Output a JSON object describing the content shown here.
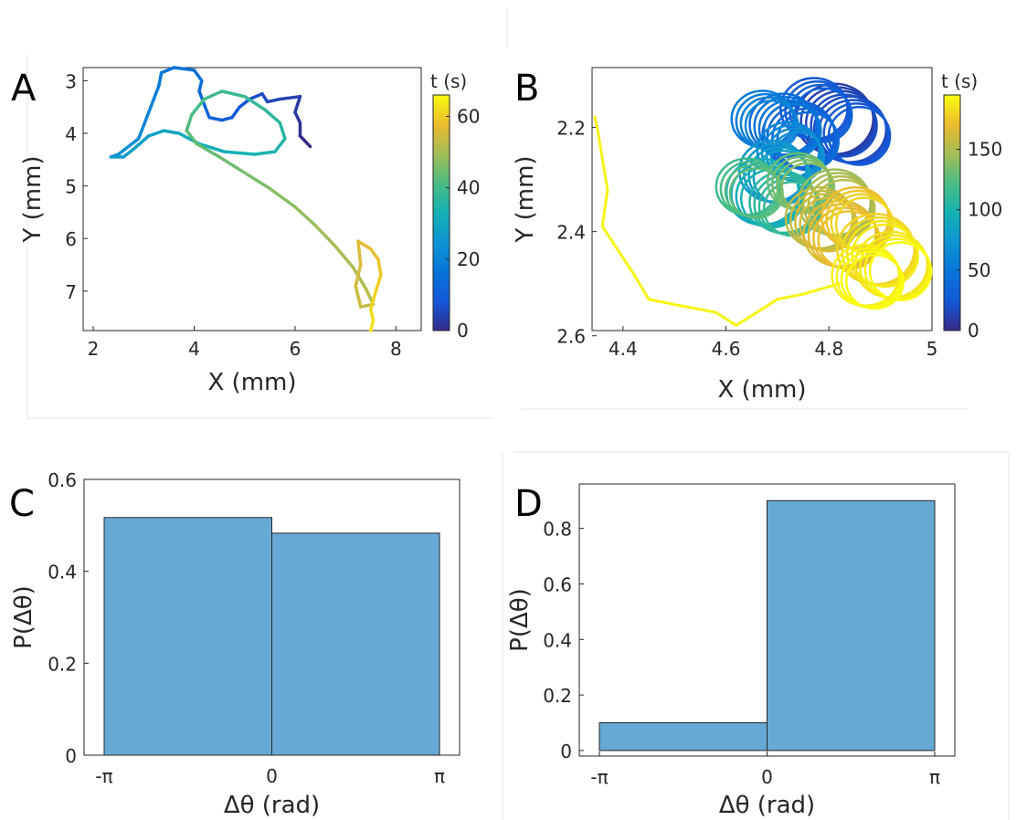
{
  "chart_data": [
    {
      "panel": "A",
      "type": "line",
      "xlabel": "X (mm)",
      "ylabel": "Y (mm)",
      "xlim": [
        1.8,
        8.5
      ],
      "ylim": [
        2.75,
        7.75
      ],
      "y_reversed": true,
      "xticks": [
        "2",
        "4",
        "6",
        "8"
      ],
      "yticks": [
        "3",
        "4",
        "5",
        "6",
        "7"
      ],
      "colorbar": {
        "title": "t (s)",
        "range": [
          0,
          66
        ],
        "ticks": [
          "0",
          "20",
          "40",
          "60"
        ]
      },
      "colormap": "parula",
      "trajectory": [
        [
          6.3,
          4.25,
          0
        ],
        [
          6.1,
          4.05,
          1
        ],
        [
          6.1,
          3.8,
          2
        ],
        [
          6.0,
          3.6,
          3
        ],
        [
          6.1,
          3.3,
          4
        ],
        [
          5.7,
          3.35,
          5
        ],
        [
          5.45,
          3.4,
          6
        ],
        [
          5.35,
          3.25,
          7
        ],
        [
          5.1,
          3.35,
          8
        ],
        [
          4.9,
          3.5,
          9
        ],
        [
          4.75,
          3.7,
          10
        ],
        [
          4.55,
          3.75,
          11
        ],
        [
          4.3,
          3.7,
          12
        ],
        [
          4.2,
          3.45,
          13
        ],
        [
          4.1,
          3.2,
          14
        ],
        [
          4.15,
          3.0,
          15
        ],
        [
          4.0,
          2.8,
          16
        ],
        [
          3.6,
          2.75,
          17
        ],
        [
          3.35,
          2.85,
          18
        ],
        [
          3.3,
          3.1,
          19
        ],
        [
          3.2,
          3.35,
          20
        ],
        [
          3.1,
          3.6,
          21
        ],
        [
          3.0,
          3.85,
          22
        ],
        [
          2.9,
          4.1,
          23
        ],
        [
          2.7,
          4.25,
          24
        ],
        [
          2.5,
          4.4,
          25
        ],
        [
          2.35,
          4.45,
          26
        ],
        [
          2.6,
          4.45,
          27
        ],
        [
          2.8,
          4.3,
          28
        ],
        [
          3.1,
          4.05,
          29
        ],
        [
          3.4,
          3.95,
          30
        ],
        [
          3.7,
          4.0,
          31
        ],
        [
          4.1,
          4.2,
          32
        ],
        [
          4.6,
          4.35,
          33
        ],
        [
          5.2,
          4.4,
          34
        ],
        [
          5.6,
          4.35,
          35
        ],
        [
          5.8,
          4.1,
          36
        ],
        [
          5.7,
          3.8,
          37
        ],
        [
          5.4,
          3.55,
          38
        ],
        [
          5.0,
          3.3,
          39
        ],
        [
          4.55,
          3.2,
          40
        ],
        [
          4.2,
          3.35,
          41
        ],
        [
          3.95,
          3.65,
          42
        ],
        [
          3.85,
          3.95,
          43
        ],
        [
          4.05,
          4.2,
          44
        ],
        [
          4.5,
          4.45,
          45
        ],
        [
          5.0,
          4.75,
          46
        ],
        [
          5.5,
          5.05,
          47
        ],
        [
          6.0,
          5.4,
          48
        ],
        [
          6.4,
          5.75,
          49
        ],
        [
          6.8,
          6.15,
          50
        ],
        [
          7.15,
          6.55,
          51
        ],
        [
          7.4,
          6.95,
          52
        ],
        [
          7.55,
          7.25,
          53
        ],
        [
          7.3,
          7.3,
          54
        ],
        [
          7.2,
          6.9,
          55
        ],
        [
          7.3,
          6.5,
          56
        ],
        [
          7.25,
          6.05,
          57
        ],
        [
          7.5,
          6.2,
          58
        ],
        [
          7.65,
          6.4,
          59
        ],
        [
          7.7,
          6.7,
          60
        ],
        [
          7.6,
          7.0,
          61
        ],
        [
          7.5,
          7.35,
          62
        ],
        [
          7.55,
          7.55,
          63
        ],
        [
          7.5,
          7.75,
          64
        ]
      ]
    },
    {
      "panel": "B",
      "type": "line",
      "xlabel": "X (mm)",
      "ylabel": "Y (mm)",
      "xlim": [
        4.34,
        5.0
      ],
      "ylim": [
        2.085,
        2.59
      ],
      "y_reversed": true,
      "xticks": [
        "4.4",
        "4.6",
        "4.8",
        "5"
      ],
      "yticks": [
        "2.2",
        "2.4",
        "2.6"
      ],
      "colorbar": {
        "title": "t (s)",
        "range": [
          0,
          195
        ],
        "ticks": [
          "0",
          "50",
          "100",
          "150"
        ]
      },
      "colormap": "parula",
      "loops": [
        {
          "cx": 4.82,
          "cy": 2.19,
          "r": 0.075,
          "t": 10
        },
        {
          "cx": 4.85,
          "cy": 2.21,
          "r": 0.07,
          "t": 18
        },
        {
          "cx": 4.78,
          "cy": 2.17,
          "r": 0.065,
          "t": 24
        },
        {
          "cx": 4.75,
          "cy": 2.22,
          "r": 0.07,
          "t": 32
        },
        {
          "cx": 4.72,
          "cy": 2.2,
          "r": 0.065,
          "t": 42
        },
        {
          "cx": 4.68,
          "cy": 2.19,
          "r": 0.06,
          "t": 52
        },
        {
          "cx": 4.73,
          "cy": 2.25,
          "r": 0.06,
          "t": 62
        },
        {
          "cx": 4.7,
          "cy": 2.29,
          "r": 0.065,
          "t": 75
        },
        {
          "cx": 4.68,
          "cy": 2.33,
          "r": 0.07,
          "t": 90
        },
        {
          "cx": 4.72,
          "cy": 2.35,
          "r": 0.065,
          "t": 105
        },
        {
          "cx": 4.65,
          "cy": 2.32,
          "r": 0.06,
          "t": 118
        },
        {
          "cx": 4.75,
          "cy": 2.31,
          "r": 0.06,
          "t": 130
        },
        {
          "cx": 4.82,
          "cy": 2.35,
          "r": 0.07,
          "t": 145
        },
        {
          "cx": 4.79,
          "cy": 2.38,
          "r": 0.065,
          "t": 155
        },
        {
          "cx": 4.83,
          "cy": 2.41,
          "r": 0.07,
          "t": 165
        },
        {
          "cx": 4.86,
          "cy": 2.38,
          "r": 0.065,
          "t": 172
        },
        {
          "cx": 4.9,
          "cy": 2.44,
          "r": 0.075,
          "t": 180
        },
        {
          "cx": 4.93,
          "cy": 2.47,
          "r": 0.07,
          "t": 186
        },
        {
          "cx": 4.88,
          "cy": 2.49,
          "r": 0.065,
          "t": 190
        }
      ],
      "tail": [
        [
          4.82,
          2.5
        ],
        [
          4.75,
          2.52
        ],
        [
          4.7,
          2.53
        ],
        [
          4.62,
          2.58
        ],
        [
          4.58,
          2.555
        ],
        [
          4.5,
          2.54
        ],
        [
          4.45,
          2.53
        ],
        [
          4.42,
          2.48
        ],
        [
          4.38,
          2.42
        ],
        [
          4.36,
          2.39
        ],
        [
          4.37,
          2.32
        ],
        [
          4.36,
          2.26
        ],
        [
          4.35,
          2.2
        ],
        [
          4.345,
          2.18
        ]
      ],
      "tail_t": 192
    },
    {
      "panel": "C",
      "type": "bar",
      "xlabel": "Δθ (rad)",
      "ylabel": "P(Δθ)",
      "ylim": [
        0,
        0.6
      ],
      "yticks": [
        "0",
        "0.2",
        "0.4",
        "0.6"
      ],
      "xticks": [
        "-π",
        "0",
        "π"
      ],
      "bin_edges": [
        -3.14159,
        0,
        3.14159
      ],
      "values": [
        0.517,
        0.483
      ],
      "color": "#67a9d5"
    },
    {
      "panel": "D",
      "type": "bar",
      "xlabel": "Δθ (rad)",
      "ylabel": "P(Δθ)",
      "ylim": [
        -0.02,
        0.96
      ],
      "yticks": [
        "0",
        "0.2",
        "0.4",
        "0.6",
        "0.8"
      ],
      "xticks": [
        "-π",
        "0",
        "π"
      ],
      "bin_edges": [
        -3.14159,
        0,
        3.14159
      ],
      "values": [
        0.1,
        0.9
      ],
      "color": "#67a9d5"
    }
  ]
}
